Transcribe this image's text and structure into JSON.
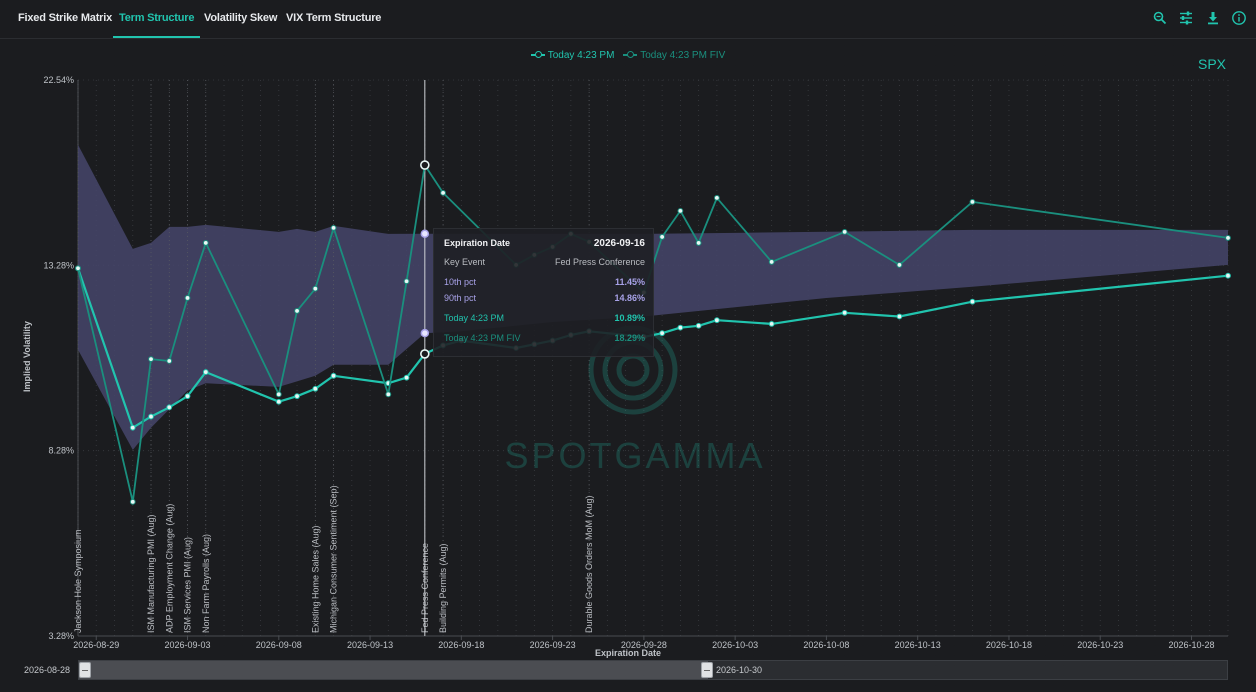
{
  "tabs": [
    "Fixed Strike Matrix",
    "Term Structure",
    "Volatility Skew",
    "VIX Term Structure"
  ],
  "active_tab": "Term Structure",
  "toolbar": {
    "icons": [
      "zoom-icon",
      "settings-sliders-icon",
      "download-icon",
      "info-icon"
    ]
  },
  "symbol": "SPX",
  "watermark": "SPOTGAMMA",
  "legend": [
    "Today 4:23 PM",
    "Today 4:23 PM FIV"
  ],
  "tooltip": {
    "expiration_label": "Expiration Date",
    "expiration_value": "2026-09-16",
    "key_event_label": "Key Event",
    "key_event_value": "Fed Press Conference",
    "p10_label": "10th pct",
    "p10_value": "11.45%",
    "p90_label": "90th pct",
    "p90_value": "14.86%",
    "today_label": "Today 4:23 PM",
    "today_value": "10.89%",
    "fiv_label": "Today 4:23 PM FIV",
    "fiv_value": "18.29%"
  },
  "slider": {
    "start": "2026-08-28",
    "end": "2026-10-30"
  },
  "colors": {
    "accent": "#21c4ae",
    "fiv": "#1a8f7e",
    "band": "#45456b",
    "pct": "#a8a2e8"
  },
  "chart_data": {
    "type": "line",
    "ylabel": "Implied Volatility",
    "xlabel": "Expiration Date",
    "y_ticks": [
      "22.54%",
      "13.28%",
      "8.28%",
      "3.28%"
    ],
    "y_tick_values": [
      22.54,
      13.28,
      8.28,
      3.28
    ],
    "ylim": [
      3.28,
      22.54
    ],
    "x_ticks": [
      "2026-08-29",
      "2026-09-03",
      "2026-09-08",
      "2026-09-13",
      "2026-09-18",
      "2026-09-23",
      "2026-09-28",
      "2026-10-03",
      "2026-10-08",
      "2026-10-13",
      "2026-10-18",
      "2026-10-23",
      "2026-10-28"
    ],
    "x_range": [
      "2026-08-28",
      "2026-10-30"
    ],
    "crosshair_date": "2026-09-16",
    "series": [
      {
        "name": "Today 4:23 PM",
        "points": [
          [
            "2026-08-28",
            13.2
          ],
          [
            "2026-08-31",
            8.9
          ],
          [
            "2026-09-01",
            9.2
          ],
          [
            "2026-09-02",
            9.45
          ],
          [
            "2026-09-03",
            9.75
          ],
          [
            "2026-09-04",
            10.4
          ],
          [
            "2026-09-08",
            9.6
          ],
          [
            "2026-09-09",
            9.75
          ],
          [
            "2026-09-10",
            9.95
          ],
          [
            "2026-09-11",
            10.3
          ],
          [
            "2026-09-14",
            10.1
          ],
          [
            "2026-09-15",
            10.25
          ],
          [
            "2026-09-16",
            10.89
          ],
          [
            "2026-09-17",
            11.12
          ],
          [
            "2026-09-18",
            11.25
          ],
          [
            "2026-09-21",
            11.05
          ],
          [
            "2026-09-22",
            11.15
          ],
          [
            "2026-09-23",
            11.25
          ],
          [
            "2026-09-24",
            11.4
          ],
          [
            "2026-09-25",
            11.5
          ],
          [
            "2026-09-28",
            11.35
          ],
          [
            "2026-09-29",
            11.45
          ],
          [
            "2026-09-30",
            11.6
          ],
          [
            "2026-10-01",
            11.65
          ],
          [
            "2026-10-02",
            11.8
          ],
          [
            "2026-10-05",
            11.7
          ],
          [
            "2026-10-09",
            12.0
          ],
          [
            "2026-10-12",
            11.9
          ],
          [
            "2026-10-16",
            12.3
          ],
          [
            "2026-10-30",
            13.0
          ]
        ]
      },
      {
        "name": "Today 4:23 PM FIV",
        "points": [
          [
            "2026-08-28",
            13.2
          ],
          [
            "2026-08-31",
            6.9
          ],
          [
            "2026-09-01",
            10.75
          ],
          [
            "2026-09-02",
            10.7
          ],
          [
            "2026-09-03",
            12.4
          ],
          [
            "2026-09-04",
            14.4
          ],
          [
            "2026-09-08",
            9.8
          ],
          [
            "2026-09-09",
            12.05
          ],
          [
            "2026-09-10",
            12.65
          ],
          [
            "2026-09-11",
            15.15
          ],
          [
            "2026-09-14",
            9.8
          ],
          [
            "2026-09-15",
            12.85
          ],
          [
            "2026-09-16",
            18.29
          ],
          [
            "2026-09-17",
            16.9
          ],
          [
            "2026-09-21",
            13.3
          ],
          [
            "2026-09-22",
            13.8
          ],
          [
            "2026-09-23",
            14.2
          ],
          [
            "2026-09-24",
            14.85
          ],
          [
            "2026-09-25",
            14.45
          ],
          [
            "2026-09-28",
            12.55
          ],
          [
            "2026-09-29",
            14.7
          ],
          [
            "2026-09-30",
            16.0
          ],
          [
            "2026-10-01",
            14.4
          ],
          [
            "2026-10-02",
            16.65
          ],
          [
            "2026-10-05",
            13.45
          ],
          [
            "2026-10-09",
            14.95
          ],
          [
            "2026-10-12",
            13.3
          ],
          [
            "2026-10-16",
            16.45
          ],
          [
            "2026-10-30",
            14.65
          ]
        ]
      }
    ],
    "band": {
      "name": "10th–90th pct",
      "lower": [
        [
          "2026-08-28",
          11.0
        ],
        [
          "2026-08-31",
          8.3
        ],
        [
          "2026-09-01",
          8.9
        ],
        [
          "2026-09-02",
          9.4
        ],
        [
          "2026-09-03",
          9.9
        ],
        [
          "2026-09-04",
          10.1
        ],
        [
          "2026-09-08",
          10.0
        ],
        [
          "2026-09-10",
          10.3
        ],
        [
          "2026-09-11",
          10.6
        ],
        [
          "2026-09-14",
          10.6
        ],
        [
          "2026-09-16",
          11.45
        ],
        [
          "2026-09-18",
          11.5
        ],
        [
          "2026-09-23",
          11.75
        ],
        [
          "2026-09-28",
          11.9
        ],
        [
          "2026-10-03",
          12.15
        ],
        [
          "2026-10-08",
          12.4
        ],
        [
          "2026-10-16",
          12.7
        ],
        [
          "2026-10-30",
          13.3
        ]
      ],
      "upper": [
        [
          "2026-08-28",
          19.3
        ],
        [
          "2026-08-31",
          14.1
        ],
        [
          "2026-09-01",
          14.4
        ],
        [
          "2026-09-02",
          15.2
        ],
        [
          "2026-09-03",
          15.2
        ],
        [
          "2026-09-04",
          15.3
        ],
        [
          "2026-09-08",
          14.95
        ],
        [
          "2026-09-09",
          15.1
        ],
        [
          "2026-09-10",
          14.95
        ],
        [
          "2026-09-11",
          15.25
        ],
        [
          "2026-09-14",
          14.85
        ],
        [
          "2026-09-16",
          14.86
        ],
        [
          "2026-09-23",
          14.85
        ],
        [
          "2026-09-28",
          14.85
        ],
        [
          "2026-10-03",
          14.9
        ],
        [
          "2026-10-16",
          15.05
        ],
        [
          "2026-10-30",
          15.05
        ]
      ]
    },
    "events": [
      {
        "date": "2026-08-28",
        "label": "Jackson Hole Symposium"
      },
      {
        "date": "2026-09-01",
        "label": "ISM Manufacturing PMI (Aug)"
      },
      {
        "date": "2026-09-02",
        "label": "ADP Employment Change (Aug)"
      },
      {
        "date": "2026-09-03",
        "label": "ISM Services PMI (Aug)"
      },
      {
        "date": "2026-09-04",
        "label": "Non Farm Payrolls (Aug)"
      },
      {
        "date": "2026-09-10",
        "label": "Existing Home Sales (Aug)"
      },
      {
        "date": "2026-09-11",
        "label": "Michigan Consumer Sentiment (Sep)"
      },
      {
        "date": "2026-09-16",
        "label": "Fed Press Conference"
      },
      {
        "date": "2026-09-17",
        "label": "Building Permits (Aug)"
      },
      {
        "date": "2026-09-25",
        "label": "Durable Goods Orders MoM (Aug)"
      }
    ]
  }
}
